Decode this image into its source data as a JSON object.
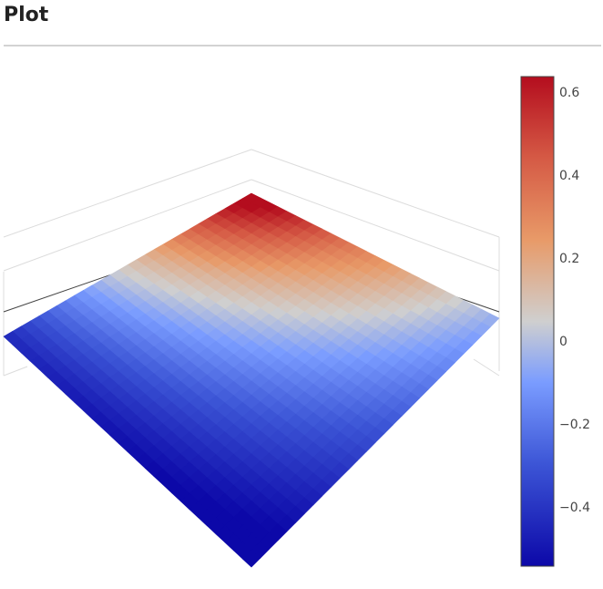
{
  "header": {
    "title": "Plot"
  },
  "chart_data": {
    "type": "surface",
    "title": "",
    "colorscale": "coolwarm",
    "color_range": [
      -0.55,
      0.65
    ],
    "colorscale_stops": [
      {
        "value": -0.55,
        "color": "#0c08a8"
      },
      {
        "value": -0.3,
        "color": "#3c55d6"
      },
      {
        "value": -0.1,
        "color": "#7a9cff"
      },
      {
        "value": 0.05,
        "color": "#cfcfcf"
      },
      {
        "value": 0.25,
        "color": "#e89a68"
      },
      {
        "value": 0.45,
        "color": "#d55a45"
      },
      {
        "value": 0.65,
        "color": "#b40d1e"
      }
    ],
    "colorbar": {
      "ticks": [
        0.6,
        0.4,
        0.2,
        0,
        -0.2,
        -0.4
      ],
      "tick_labels": [
        "0.6",
        "0.4",
        "0.2",
        "0",
        "−0.2",
        "−0.4"
      ]
    },
    "surface_corner_values": {
      "back": 0.65,
      "right": -0.05,
      "left": -0.45,
      "front": -0.55
    },
    "grid": true
  }
}
